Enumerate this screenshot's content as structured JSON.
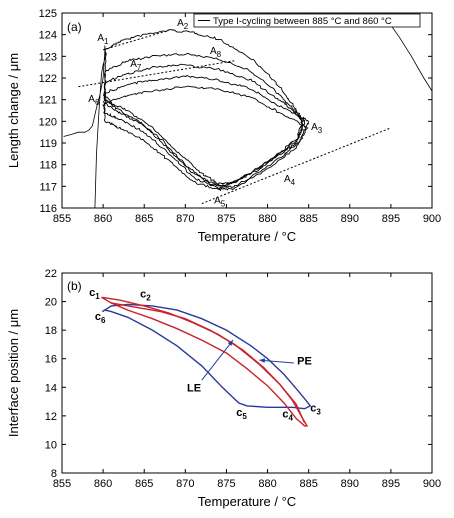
{
  "chart_data": [
    {
      "panel": "(a)",
      "type": "line",
      "xlabel": "Temperature / °C",
      "ylabel": "Length change / μm",
      "xlim": [
        855,
        900
      ],
      "ylim": [
        116,
        125
      ],
      "xticks": [
        855,
        860,
        865,
        870,
        875,
        880,
        885,
        890,
        895,
        900
      ],
      "yticks": [
        116,
        117,
        118,
        119,
        120,
        121,
        122,
        123,
        124,
        125
      ],
      "legend": {
        "label": "Type I-cycling between 885 °C and 860 °C",
        "position": "top-right"
      },
      "series": [
        {
          "role": "noisy-cycle-loops",
          "color": "#000000",
          "loops": [
            [
              [
                860.3,
                123.3
              ],
              [
                862,
                123.7
              ],
              [
                865,
                124.0
              ],
              [
                868,
                124.2
              ],
              [
                871,
                124.1
              ],
              [
                874,
                123.8
              ],
              [
                878,
                122.9
              ],
              [
                881,
                121.8
              ],
              [
                883,
                120.8
              ],
              [
                884,
                120.2
              ],
              [
                884.3,
                119.8
              ],
              [
                883.5,
                119.0
              ],
              [
                882,
                118.6
              ],
              [
                879,
                117.8
              ],
              [
                876,
                117.2
              ],
              [
                874,
                117.1
              ],
              [
                872,
                117.6
              ],
              [
                869,
                118.6
              ],
              [
                866,
                119.7
              ],
              [
                863,
                120.5
              ],
              [
                861,
                120.8
              ],
              [
                860.2,
                121.0
              ]
            ],
            [
              [
                860.3,
                122.3
              ],
              [
                863,
                122.8
              ],
              [
                866,
                123.0
              ],
              [
                870,
                123.1
              ],
              [
                874,
                122.9
              ],
              [
                878,
                122.3
              ],
              [
                881,
                121.4
              ],
              [
                883,
                120.6
              ],
              [
                884.2,
                120.0
              ],
              [
                883.6,
                119.2
              ],
              [
                881,
                118.4
              ],
              [
                878,
                117.6
              ],
              [
                875,
                117.0
              ],
              [
                873,
                117.1
              ],
              [
                870,
                118.0
              ],
              [
                867,
                119.2
              ],
              [
                864,
                120.1
              ],
              [
                861.5,
                120.6
              ],
              [
                860.2,
                121.2
              ]
            ],
            [
              [
                860.2,
                121.8
              ],
              [
                863,
                122.2
              ],
              [
                866,
                122.5
              ],
              [
                870,
                122.6
              ],
              [
                874,
                122.4
              ],
              [
                878,
                121.9
              ],
              [
                881,
                121.1
              ],
              [
                883.5,
                120.4
              ],
              [
                884.5,
                120.0
              ],
              [
                883.5,
                119.1
              ],
              [
                880,
                118.1
              ],
              [
                876,
                117.2
              ],
              [
                874,
                117.0
              ],
              [
                871,
                117.6
              ],
              [
                868,
                118.7
              ],
              [
                865,
                119.8
              ],
              [
                862,
                120.4
              ],
              [
                860.3,
                120.8
              ]
            ],
            [
              [
                860.1,
                121.3
              ],
              [
                863,
                121.7
              ],
              [
                866,
                121.9
              ],
              [
                870,
                122.1
              ],
              [
                874,
                121.9
              ],
              [
                878,
                121.5
              ],
              [
                881,
                120.8
              ],
              [
                884,
                120.2
              ],
              [
                885,
                120.0
              ],
              [
                883.8,
                119.0
              ],
              [
                880,
                117.9
              ],
              [
                876,
                117.0
              ],
              [
                874,
                116.9
              ],
              [
                871,
                117.4
              ],
              [
                868,
                118.5
              ],
              [
                865,
                119.5
              ],
              [
                862,
                120.1
              ],
              [
                860.2,
                120.4
              ]
            ],
            [
              [
                860.1,
                120.8
              ],
              [
                863,
                121.2
              ],
              [
                866,
                121.4
              ],
              [
                870,
                121.6
              ],
              [
                874,
                121.5
              ],
              [
                878,
                121.1
              ],
              [
                881,
                120.5
              ],
              [
                884,
                119.9
              ],
              [
                884.8,
                119.7
              ],
              [
                883.5,
                118.8
              ],
              [
                880,
                117.8
              ],
              [
                876,
                116.9
              ],
              [
                874,
                116.85
              ],
              [
                871,
                117.2
              ],
              [
                868,
                118.2
              ],
              [
                865,
                119.1
              ],
              [
                862,
                119.7
              ],
              [
                860.2,
                120.0
              ]
            ]
          ]
        },
        {
          "role": "background-trace",
          "color": "#000000",
          "x": [
            855.2,
            856.2,
            857.0,
            857.8,
            858.3,
            858.7,
            859.0,
            859.3,
            859.6,
            859.8,
            860.0,
            860.1,
            860.2,
            860.2,
            860.3,
            860.0,
            859.8,
            859.5,
            859.2,
            859.0
          ],
          "y": [
            119.3,
            119.4,
            119.5,
            119.5,
            119.6,
            119.8,
            120.3,
            120.8,
            121.2,
            121.6,
            122.0,
            122.6,
            123.2,
            123.5,
            123.0,
            122.6,
            122.2,
            120.5,
            118.5,
            116.0
          ]
        },
        {
          "role": "background-trace-right",
          "color": "#000000",
          "x": [
            893.5,
            894.5,
            896.0,
            897.5,
            899.0,
            900.0
          ],
          "y": [
            124.95,
            124.7,
            123.9,
            123.0,
            122.0,
            121.4
          ]
        },
        {
          "role": "guide-lines",
          "color": "#000000",
          "dashed": true,
          "segments": [
            [
              [
                860,
                123.3
              ],
              [
                868,
                124.2
              ]
            ],
            [
              [
                857,
                121.6
              ],
              [
                876,
                122.8
              ]
            ],
            [
              [
                872,
                116.2
              ],
              [
                895,
                119.7
              ]
            ]
          ]
        }
      ],
      "annotations": [
        {
          "text": "A",
          "sub": "1",
          "x": 859.3,
          "y": 123.7
        },
        {
          "text": "A",
          "sub": "2",
          "x": 869.0,
          "y": 124.4
        },
        {
          "text": "A",
          "sub": "8",
          "x": 873.0,
          "y": 123.1
        },
        {
          "text": "A",
          "sub": "7",
          "x": 863.3,
          "y": 122.5
        },
        {
          "text": "A",
          "sub": "6",
          "x": 858.2,
          "y": 120.9
        },
        {
          "text": "A",
          "sub": "3",
          "x": 885.3,
          "y": 119.6
        },
        {
          "text": "A",
          "sub": "4",
          "x": 882.0,
          "y": 117.2
        },
        {
          "text": "A",
          "sub": "5",
          "x": 873.5,
          "y": 116.2
        }
      ]
    },
    {
      "panel": "(b)",
      "type": "line",
      "xlabel": "Temperature / °C",
      "ylabel": "Interface position / μm",
      "xlim": [
        855,
        900
      ],
      "ylim": [
        8,
        22
      ],
      "xticks": [
        855,
        860,
        865,
        870,
        875,
        880,
        885,
        890,
        895,
        900
      ],
      "yticks": [
        8,
        10,
        12,
        14,
        16,
        18,
        20,
        22
      ],
      "series": [
        {
          "role": "blue-cycle",
          "color": "#2a3a9c",
          "x": [
            859.9,
            861,
            863,
            866,
            869,
            872,
            875,
            878,
            880,
            882,
            883.5,
            884.5,
            885.2,
            884.5,
            883.0,
            880.0,
            877.5,
            876.5,
            874.5,
            872,
            869,
            866,
            863,
            861,
            860.2,
            859.9
          ],
          "y": [
            19.3,
            19.7,
            19.8,
            19.7,
            19.4,
            18.8,
            18.0,
            16.9,
            16.0,
            14.9,
            13.9,
            13.2,
            12.7,
            12.5,
            12.6,
            12.6,
            12.7,
            12.9,
            14.0,
            15.5,
            16.9,
            18.0,
            18.9,
            19.3,
            19.4,
            19.3
          ]
        },
        {
          "role": "red-cycle",
          "color": "#c8242a",
          "x": [
            859.8,
            862,
            865,
            868,
            871,
            874,
            877,
            879.5,
            881.5,
            883,
            884,
            884.8,
            884.5,
            883.5,
            882,
            880,
            877.5,
            875,
            872,
            869,
            866,
            863,
            861,
            859.8
          ],
          "y": [
            20.3,
            20.1,
            19.7,
            19.2,
            18.5,
            17.7,
            16.6,
            15.4,
            14.2,
            13.1,
            12.1,
            11.3,
            11.3,
            11.8,
            12.9,
            14.1,
            15.3,
            16.4,
            17.3,
            18.1,
            18.8,
            19.4,
            19.9,
            20.3
          ]
        },
        {
          "role": "red-inner",
          "color": "#c8242a",
          "x": [
            861,
            864,
            867,
            870,
            873,
            876,
            879,
            881.5,
            883.5,
            884.5
          ],
          "y": [
            19.9,
            19.6,
            19.3,
            18.8,
            18.0,
            17.0,
            15.6,
            14.2,
            12.8,
            11.5
          ]
        }
      ],
      "annotations": [
        {
          "text": "c",
          "sub": "1",
          "x": 858.3,
          "y": 20.4
        },
        {
          "text": "c",
          "sub": "2",
          "x": 864.5,
          "y": 20.3
        },
        {
          "text": "c",
          "sub": "6",
          "x": 859.0,
          "y": 18.7
        },
        {
          "text": "c",
          "sub": "3",
          "x": 885.2,
          "y": 12.3
        },
        {
          "text": "c",
          "sub": "4",
          "x": 881.8,
          "y": 11.9
        },
        {
          "text": "c",
          "sub": "5",
          "x": 876.2,
          "y": 12.0
        },
        {
          "text": "PE",
          "x": 883.6,
          "y": 15.6,
          "arrow_from": [
            883.2,
            15.7
          ],
          "arrow_to": [
            879.0,
            15.9
          ]
        },
        {
          "text": "LE",
          "x": 870.2,
          "y": 13.7,
          "arrow_from": [
            872.0,
            14.5
          ],
          "arrow_to": [
            875.8,
            17.3
          ]
        }
      ]
    }
  ]
}
